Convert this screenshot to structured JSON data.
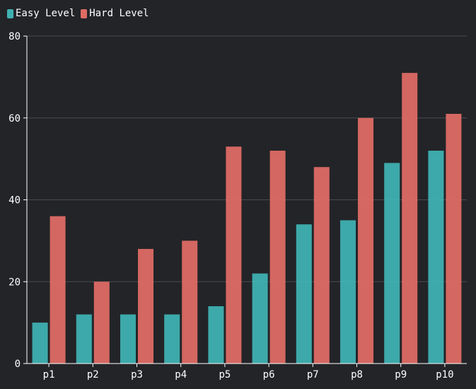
{
  "chart_data": {
    "type": "bar",
    "categories": [
      "p1",
      "p2",
      "p3",
      "p4",
      "p5",
      "p6",
      "p7",
      "p8",
      "p9",
      "p10"
    ],
    "series": [
      {
        "name": "Easy Level",
        "color": "#3fb1b1",
        "values": [
          10,
          12,
          12,
          12,
          14,
          22,
          34,
          35,
          49,
          52
        ]
      },
      {
        "name": "Hard Level",
        "color": "#de6c64",
        "values": [
          36,
          20,
          28,
          30,
          53,
          52,
          48,
          60,
          71,
          61
        ]
      }
    ],
    "ylim": [
      0,
      80
    ],
    "yticks": [
      0,
      20,
      40,
      60,
      80
    ],
    "grid": true,
    "legend_position": "top-left",
    "title": "",
    "xlabel": "",
    "ylabel": ""
  },
  "theme": {
    "background": "#232428",
    "axis_color": "#ffffff",
    "grid_color": "#4a4b50",
    "text_color": "#ffffff"
  }
}
